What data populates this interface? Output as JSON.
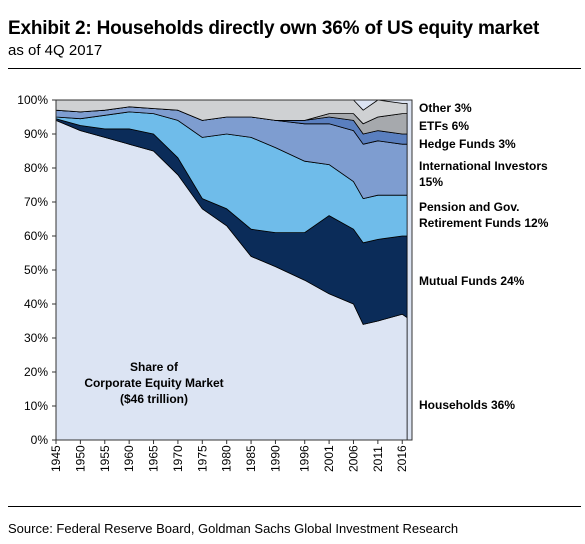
{
  "header": {
    "title": "Exhibit 2: Households directly own 36% of US equity market",
    "subtitle": "as of 4Q 2017"
  },
  "footer": {
    "source": "Source: Federal Reserve Board, Goldman Sachs Global Investment Research"
  },
  "chart_data": {
    "type": "area",
    "stacked": true,
    "title": "",
    "xlabel": "",
    "ylabel": "",
    "xlim": [
      1945,
      2018
    ],
    "ylim": [
      0,
      100
    ],
    "y_unit": "%",
    "grid": false,
    "legend": "right-side labels",
    "annotation": [
      "Share of",
      "Corporate Equity Market",
      "($46 trillion)"
    ],
    "x_ticks": [
      1945,
      1950,
      1955,
      1960,
      1965,
      1970,
      1975,
      1980,
      1985,
      1990,
      1996,
      2001,
      2006,
      2011,
      2016
    ],
    "y_ticks": [
      "0%",
      "10%",
      "20%",
      "30%",
      "40%",
      "50%",
      "60%",
      "70%",
      "80%",
      "90%",
      "100%"
    ],
    "x": [
      1945,
      1950,
      1955,
      1960,
      1965,
      1970,
      1975,
      1980,
      1985,
      1990,
      1996,
      2001,
      2006,
      2008,
      2011,
      2016,
      2017
    ],
    "series": [
      {
        "name": "Households 36%",
        "label_lines": [
          "Households 36%"
        ],
        "color": "#dce4f3",
        "values": [
          94,
          91,
          89,
          87,
          85,
          78,
          68,
          63,
          54,
          51,
          47,
          43,
          40,
          34,
          35,
          37,
          36
        ]
      },
      {
        "name": "Mutual Funds 24%",
        "label_lines": [
          "Mutual Funds 24%"
        ],
        "color": "#0b2c59",
        "values": [
          0.5,
          1.5,
          2.5,
          4.5,
          5,
          5,
          3,
          5,
          8,
          10,
          14,
          23,
          22,
          24,
          24,
          23,
          24
        ]
      },
      {
        "name": "Pension and Gov. Retirement Funds 12%",
        "label_lines": [
          "Pension and Gov.",
          "Retirement Funds 12%"
        ],
        "color": "#6fbcea",
        "values": [
          0.5,
          2,
          4,
          5,
          6,
          11,
          18,
          22,
          27,
          25,
          21,
          15,
          14,
          13,
          13,
          12,
          12
        ]
      },
      {
        "name": "International Investors 15%",
        "label_lines": [
          "International Investors",
          "15%"
        ],
        "color": "#7e9dd0",
        "values": [
          2,
          2,
          1.5,
          1.5,
          1.5,
          3,
          5,
          5,
          6,
          8,
          11,
          12,
          15,
          16,
          16,
          15,
          15
        ]
      },
      {
        "name": "Hedge Funds 3%",
        "label_lines": [
          "Hedge Funds 3%"
        ],
        "color": "#5a7fbf",
        "values": [
          0,
          0,
          0,
          0,
          0,
          0,
          0,
          0,
          0,
          0,
          1,
          2,
          3,
          3,
          3,
          3,
          3
        ]
      },
      {
        "name": "ETFs 6%",
        "label_lines": [
          "ETFs 6%"
        ],
        "color": "#a6a9ad",
        "values": [
          0,
          0,
          0,
          0,
          0,
          0,
          0,
          0,
          0,
          0,
          0,
          1,
          2,
          3,
          4,
          6,
          6
        ]
      },
      {
        "name": "Other 3%",
        "label_lines": [
          "Other 3%"
        ],
        "color": "#cfd1d3",
        "values": [
          3,
          3.5,
          3,
          2,
          2.5,
          3,
          6,
          5,
          5,
          6,
          6,
          4,
          4,
          4,
          5,
          3,
          3
        ]
      }
    ]
  }
}
